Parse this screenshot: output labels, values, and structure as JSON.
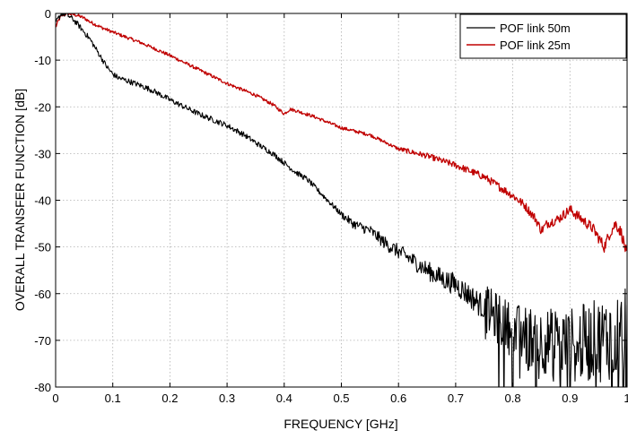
{
  "chart_data": {
    "type": "line",
    "title": "",
    "xlabel": "FREQUENCY [GHz]",
    "ylabel": "OVERALL TRANSFER FUNCTION [dB]",
    "xlim": [
      0,
      1
    ],
    "ylim": [
      -80,
      0
    ],
    "xticks": [
      0,
      0.1,
      0.2,
      0.3,
      0.4,
      0.5,
      0.6,
      0.7,
      0.8,
      0.9,
      1
    ],
    "xtick_labels": [
      "0",
      "0.1",
      "0.2",
      "0.3",
      "0.4",
      "0.5",
      "0.6",
      "0.7",
      "0.8",
      "0.9",
      "1"
    ],
    "yticks": [
      0,
      -10,
      -20,
      -30,
      -40,
      -50,
      -60,
      -70,
      -80
    ],
    "ytick_labels": [
      "0",
      "-10",
      "-20",
      "-30",
      "-40",
      "-50",
      "-60",
      "-70",
      "-80"
    ],
    "grid": true,
    "legend_position": "top-right",
    "series": [
      {
        "name": "POF link 50m",
        "color": "#000000",
        "noise_amplitude": 0.6,
        "x": [
          0,
          0.005,
          0.01,
          0.02,
          0.03,
          0.04,
          0.05,
          0.06,
          0.07,
          0.08,
          0.09,
          0.1,
          0.11,
          0.12,
          0.13,
          0.15,
          0.17,
          0.2,
          0.25,
          0.3,
          0.33,
          0.36,
          0.38,
          0.4,
          0.42,
          0.44,
          0.46,
          0.48,
          0.5,
          0.52,
          0.55,
          0.58,
          0.6,
          0.62,
          0.65,
          0.68,
          0.7,
          0.72,
          0.75,
          0.78,
          0.8,
          0.85,
          0.9,
          0.95,
          1.0
        ],
        "y": [
          -2,
          -1,
          0,
          -0.3,
          -1.2,
          -2.5,
          -4,
          -5.5,
          -7.5,
          -9.5,
          -11.5,
          -13,
          -13.8,
          -14.2,
          -14.6,
          -15.5,
          -16.5,
          -18.5,
          -21.5,
          -24,
          -26,
          -28.5,
          -30,
          -32,
          -34,
          -35.5,
          -38,
          -40.5,
          -43,
          -45,
          -46.5,
          -49.5,
          -51,
          -52.5,
          -55,
          -57,
          -58,
          -60,
          -63,
          -66,
          -68,
          -70,
          -71,
          -70,
          -68
        ]
      },
      {
        "name": "POF link 25m",
        "color": "#c00000",
        "noise_amplitude": 0.35,
        "x": [
          0,
          0.005,
          0.01,
          0.02,
          0.03,
          0.04,
          0.05,
          0.06,
          0.08,
          0.1,
          0.15,
          0.2,
          0.25,
          0.3,
          0.35,
          0.38,
          0.39,
          0.4,
          0.41,
          0.42,
          0.45,
          0.5,
          0.55,
          0.6,
          0.65,
          0.7,
          0.75,
          0.8,
          0.82,
          0.84,
          0.85,
          0.86,
          0.88,
          0.9,
          0.92,
          0.94,
          0.95,
          0.96,
          0.97,
          0.98,
          0.99,
          1.0
        ],
        "y": [
          -3,
          -1.5,
          -0.5,
          0,
          -0.2,
          -0.5,
          -1,
          -1.8,
          -3,
          -4,
          -6.3,
          -9,
          -12,
          -15,
          -17.5,
          -19.5,
          -20.5,
          -21.5,
          -20.5,
          -20.8,
          -22,
          -24.5,
          -26,
          -29,
          -30.5,
          -32.5,
          -35,
          -39,
          -41,
          -44,
          -46.5,
          -45,
          -44,
          -42,
          -44,
          -46,
          -48,
          -50,
          -47,
          -45,
          -47,
          -52
        ]
      }
    ]
  }
}
